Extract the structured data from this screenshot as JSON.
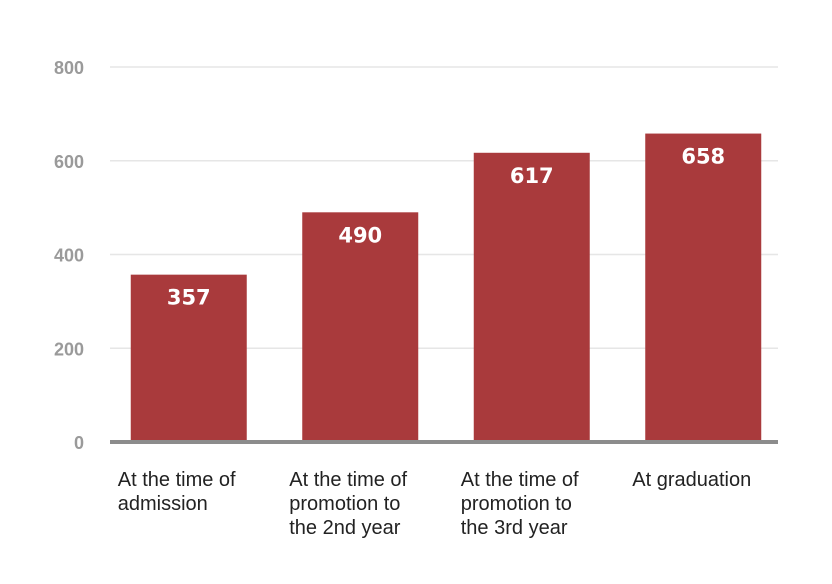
{
  "chart_data": {
    "type": "bar",
    "categories": [
      [
        "At the time of",
        "admission"
      ],
      [
        "At the time of",
        "promotion to",
        "the 2nd year"
      ],
      [
        "At the time of",
        "promotion to",
        "the 3rd year"
      ],
      [
        "At graduation"
      ]
    ],
    "values": [
      357,
      490,
      617,
      658
    ],
    "data_labels": [
      "357",
      "490",
      "617",
      "658"
    ],
    "yticks": [
      0,
      200,
      400,
      600,
      800
    ],
    "ylim": [
      0,
      800
    ],
    "grid": true,
    "bar_color": "#a93a3c",
    "gridline_color": "#e6e6e6",
    "baseline_color": "#8c8c8c"
  }
}
